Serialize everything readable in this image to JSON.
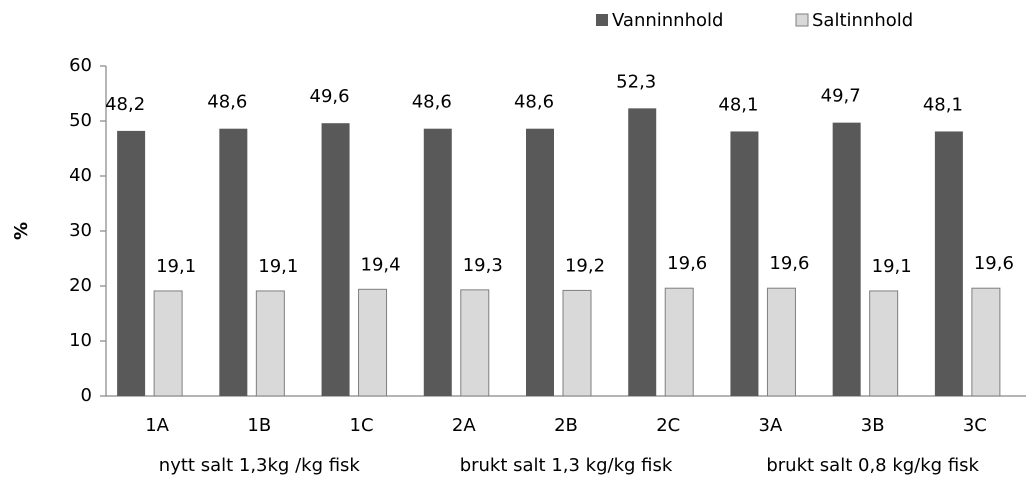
{
  "chart_data": {
    "type": "bar",
    "y_label": "%",
    "categories": [
      "1A",
      "1B",
      "1C",
      "2A",
      "2B",
      "2C",
      "3A",
      "3B",
      "3C"
    ],
    "groups": [
      "nytt salt 1,3kg /kg fisk",
      "brukt salt 1,3 kg/kg fisk",
      "brukt salt 0,8 kg/kg fisk"
    ],
    "series": [
      {
        "name": "Vanninnhold",
        "color": "#595959",
        "values": [
          48.2,
          48.6,
          49.6,
          48.6,
          48.6,
          52.3,
          48.1,
          49.7,
          48.1
        ],
        "value_labels": [
          "48,2",
          "48,6",
          "49,6",
          "48,6",
          "48,6",
          "52,3",
          "48,1",
          "49,7",
          "48,1"
        ]
      },
      {
        "name": "Saltinnhold",
        "color": "#d9d9d9",
        "values": [
          19.1,
          19.1,
          19.4,
          19.3,
          19.2,
          19.6,
          19.6,
          19.1,
          19.6
        ],
        "value_labels": [
          "19,1",
          "19,1",
          "19,4",
          "19,3",
          "19,2",
          "19,6",
          "19,6",
          "19,1",
          "19,6"
        ]
      }
    ],
    "ylim": [
      0,
      60
    ],
    "yticks": [
      0,
      10,
      20,
      30,
      40,
      50,
      60
    ],
    "legend": "top-right"
  }
}
